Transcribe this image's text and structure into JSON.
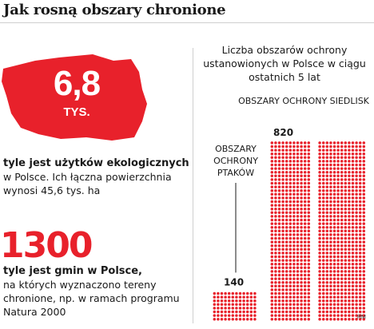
{
  "title": "Jak rosną obszary chronione",
  "stat1": {
    "value": "6,8",
    "unit": "TYS.",
    "heading": "tyle jest użytków ekologicznych",
    "text": "w Polsce. Ich łączna powierzchnia wynosi 45,6 tys. ha",
    "shape_color": "#e8212b"
  },
  "stat2": {
    "value": "1300",
    "heading": "tyle jest gmin w Polsce,",
    "text": "na których wyznaczono tereny chronione, np. w ramach programu Natura 2000",
    "color": "#e8212b"
  },
  "chart_data": {
    "type": "bar",
    "title": "Liczba obszarów ochrony ustanowionych w Polsce w ciągu ostatnich 5 lat",
    "categories": [
      "OBSZARY OCHRONY PTAKÓW",
      "OBSZARY OCHRONY SIEDLISK"
    ],
    "category_lines": [
      [
        "OBSZARY",
        "OCHRONY",
        "PTAKÓW"
      ],
      [
        "OBSZARY OCHRONY SIEDLISK"
      ]
    ],
    "values": [
      140,
      820
    ],
    "value_labels": [
      "140",
      "820"
    ],
    "color": "#e8212b",
    "style": "dot-matrix"
  },
  "credit": "RM"
}
